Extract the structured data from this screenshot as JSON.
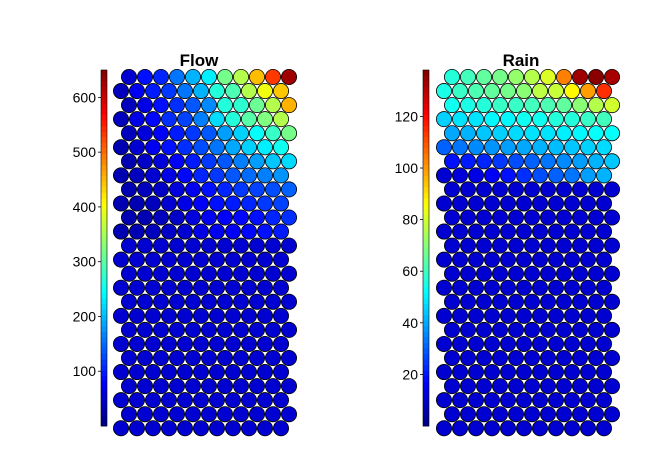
{
  "chart_data": [
    {
      "type": "hexbin",
      "title": "Flow",
      "colormap": "jet",
      "colorbar": {
        "range": [
          0,
          650
        ],
        "ticks": [
          100,
          200,
          300,
          400,
          500,
          600
        ]
      },
      "grid_size": [
        11,
        26
      ],
      "levels_top_rows": [
        [
          0.08,
          0.14,
          0.16,
          0.24,
          0.3,
          0.36,
          0.49,
          0.55,
          0.69,
          0.82,
          0.97
        ],
        [
          0.06,
          0.11,
          0.15,
          0.18,
          0.24,
          0.3,
          0.41,
          0.45,
          0.55,
          0.61,
          0.68
        ],
        [
          0.06,
          0.1,
          0.14,
          0.17,
          0.21,
          0.26,
          0.41,
          0.42,
          0.48,
          0.55,
          0.7
        ],
        [
          0.06,
          0.1,
          0.13,
          0.17,
          0.19,
          0.25,
          0.34,
          0.41,
          0.46,
          0.5,
          0.55
        ],
        [
          0.06,
          0.09,
          0.12,
          0.15,
          0.18,
          0.21,
          0.28,
          0.33,
          0.38,
          0.43,
          0.49
        ],
        [
          0.05,
          0.08,
          0.11,
          0.14,
          0.17,
          0.2,
          0.24,
          0.29,
          0.33,
          0.36,
          0.39
        ],
        [
          0.05,
          0.07,
          0.09,
          0.12,
          0.15,
          0.18,
          0.21,
          0.25,
          0.28,
          0.32,
          0.34
        ],
        [
          0.05,
          0.06,
          0.08,
          0.1,
          0.13,
          0.16,
          0.18,
          0.21,
          0.23,
          0.25,
          0.27
        ],
        [
          0.05,
          0.06,
          0.07,
          0.09,
          0.11,
          0.14,
          0.16,
          0.18,
          0.19,
          0.2,
          0.22
        ],
        [
          0.05,
          0.05,
          0.06,
          0.08,
          0.1,
          0.12,
          0.14,
          0.15,
          0.16,
          0.18,
          0.19
        ],
        [
          0.05,
          0.05,
          0.06,
          0.07,
          0.09,
          0.11,
          0.12,
          0.13,
          0.14,
          0.16,
          0.17
        ],
        [
          0.05,
          0.05,
          0.06,
          0.07,
          0.08,
          0.1,
          0.11,
          0.12,
          0.13,
          0.14,
          0.15
        ]
      ],
      "level_lower_rows": 0.08
    },
    {
      "type": "hexbin",
      "title": "Rain",
      "colormap": "jet",
      "colorbar": {
        "range": [
          0,
          138
        ],
        "ticks": [
          20,
          40,
          60,
          80,
          100,
          120
        ]
      },
      "grid_size": [
        11,
        26
      ],
      "levels_top_rows": [
        [
          0.41,
          0.44,
          0.47,
          0.49,
          0.52,
          0.55,
          0.59,
          0.75,
          0.97,
          0.99,
          0.96
        ],
        [
          0.4,
          0.43,
          0.45,
          0.47,
          0.49,
          0.51,
          0.56,
          0.57,
          0.63,
          0.72,
          0.83
        ],
        [
          0.39,
          0.4,
          0.41,
          0.43,
          0.43,
          0.44,
          0.45,
          0.47,
          0.51,
          0.55,
          0.58
        ],
        [
          0.33,
          0.35,
          0.35,
          0.37,
          0.37,
          0.39,
          0.39,
          0.41,
          0.41,
          0.43,
          0.44
        ],
        [
          0.29,
          0.3,
          0.32,
          0.33,
          0.34,
          0.35,
          0.35,
          0.36,
          0.37,
          0.38,
          0.38
        ],
        [
          0.22,
          0.24,
          0.26,
          0.27,
          0.28,
          0.29,
          0.3,
          0.31,
          0.32,
          0.33,
          0.34
        ],
        [
          0.14,
          0.15,
          0.16,
          0.18,
          0.2,
          0.22,
          0.24,
          0.26,
          0.28,
          0.3,
          0.32
        ],
        [
          0.08,
          0.09,
          0.1,
          0.12,
          0.14,
          0.17,
          0.2,
          0.22,
          0.24,
          0.28,
          0.3
        ]
      ],
      "level_lower_rows": 0.08
    }
  ]
}
